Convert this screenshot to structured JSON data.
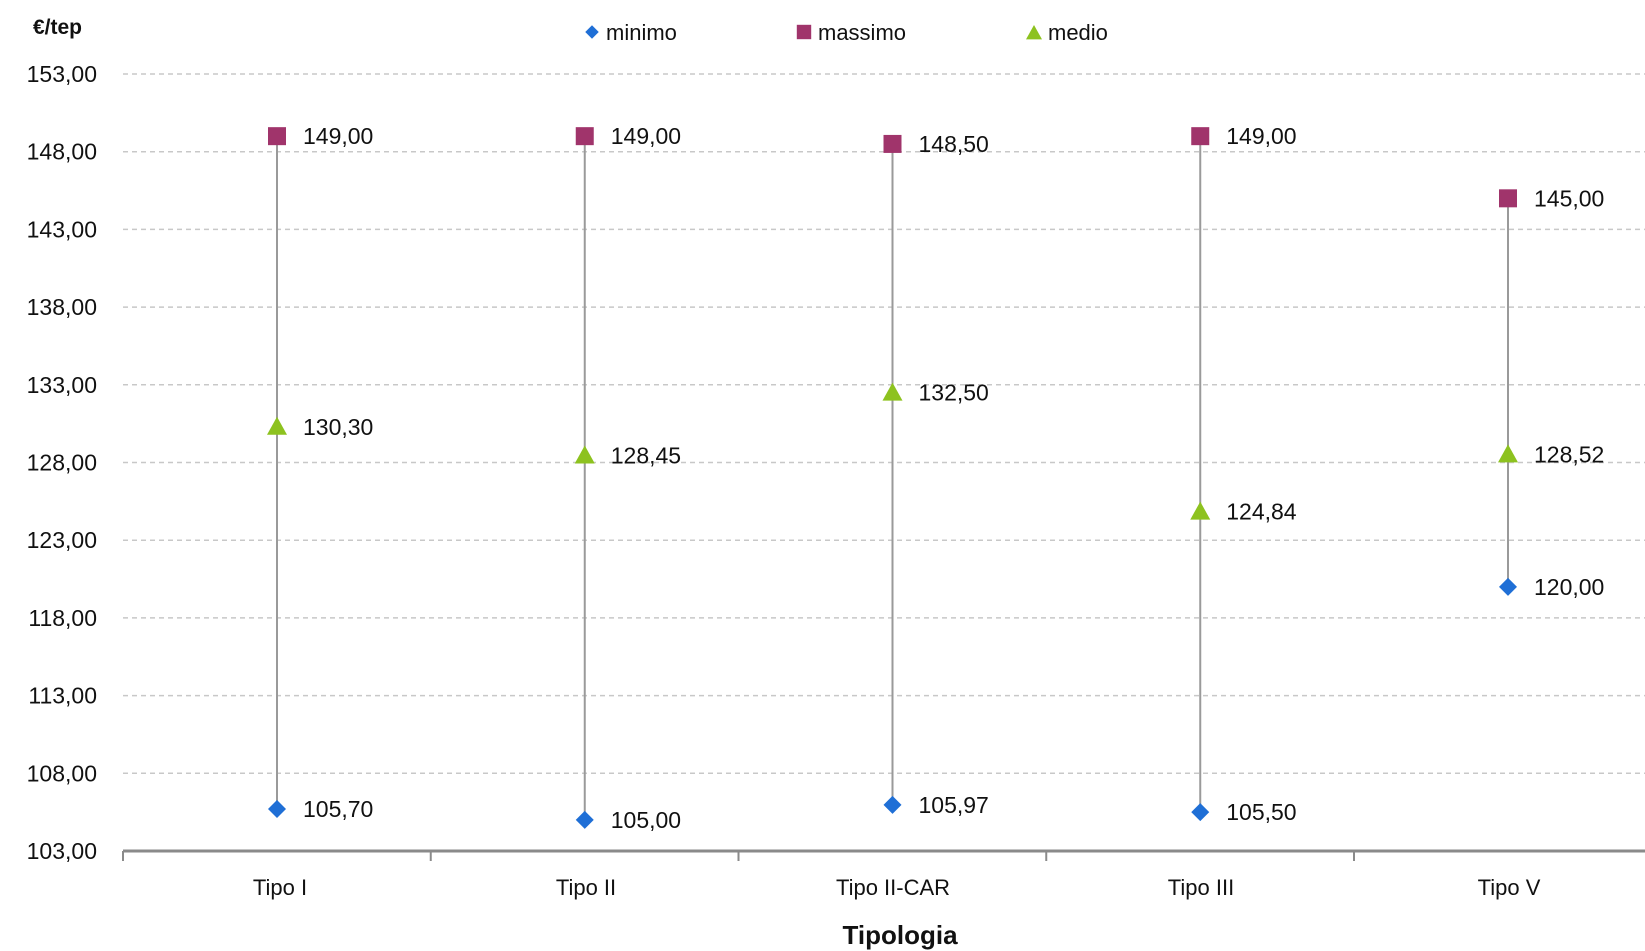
{
  "chart_data": {
    "type": "scatter",
    "ylabel": "€/tep",
    "xlabel": "Tipologia",
    "categories": [
      "Tipo I",
      "Tipo II",
      "Tipo II-CAR",
      "Tipo III",
      "Tipo V"
    ],
    "ylim": [
      103,
      153
    ],
    "yticks": [
      "103,00",
      "108,00",
      "113,00",
      "118,00",
      "123,00",
      "128,00",
      "133,00",
      "138,00",
      "143,00",
      "148,00",
      "153,00"
    ],
    "grid": true,
    "legend_position": "top-center",
    "series": [
      {
        "name": "minimo",
        "marker": "diamond",
        "color": "#1F6FD6",
        "values": [
          105.7,
          105.0,
          105.97,
          105.5,
          120.0
        ],
        "labels": [
          "105,70",
          "105,00",
          "105,97",
          "105,50",
          "120,00"
        ]
      },
      {
        "name": "massimo",
        "marker": "square",
        "color": "#A0346B",
        "values": [
          149.0,
          149.0,
          148.5,
          149.0,
          145.0
        ],
        "labels": [
          "149,00",
          "149,00",
          "148,50",
          "149,00",
          "145,00"
        ]
      },
      {
        "name": "medio",
        "marker": "triangle",
        "color": "#8DC21F",
        "values": [
          130.3,
          128.45,
          132.5,
          124.84,
          128.52
        ],
        "labels": [
          "130,30",
          "128,45",
          "132,50",
          "124,84",
          "128,52"
        ]
      }
    ]
  }
}
